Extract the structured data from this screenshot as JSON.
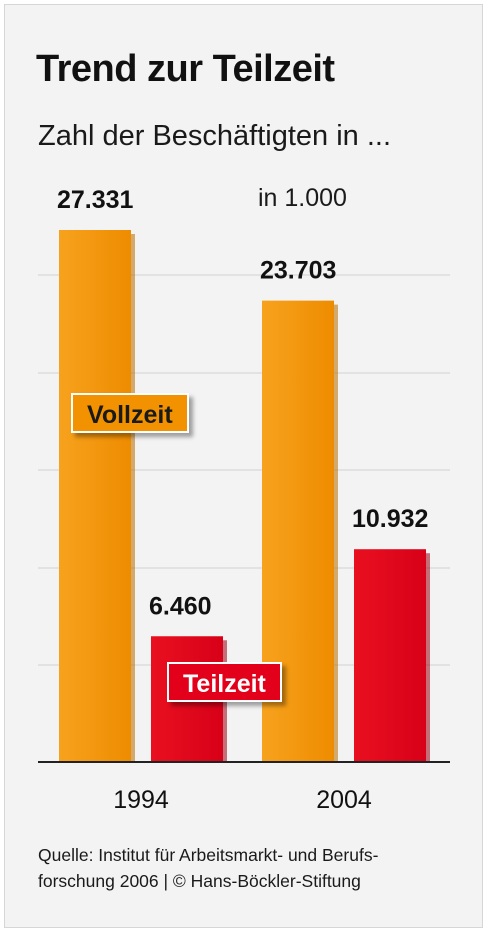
{
  "chart_data": {
    "type": "bar",
    "title": "Trend zur Teilzeit",
    "subtitle": "Zahl der Beschäftigten in ...",
    "unit": "in 1.000",
    "categories": [
      "1994",
      "2004"
    ],
    "series": [
      {
        "name": "Vollzeit",
        "color": "#f39200",
        "values": [
          27331,
          23703
        ],
        "labels": [
          "27.331",
          "23.703"
        ]
      },
      {
        "name": "Teilzeit",
        "color": "#e2001a",
        "values": [
          6460,
          10932
        ],
        "labels": [
          "6.460",
          "10.932"
        ]
      }
    ],
    "ylim": [
      0,
      27331
    ],
    "grid": true,
    "source": "Quelle: Institut für Arbeitsmarkt- und Berufsforschung 2006 | © Hans-Böckler-Stiftung",
    "source_lines": [
      "Quelle: Institut für Arbeitsmarkt- und Berufs-",
      "forschung 2006 | © Hans-Böckler-Stiftung"
    ]
  }
}
